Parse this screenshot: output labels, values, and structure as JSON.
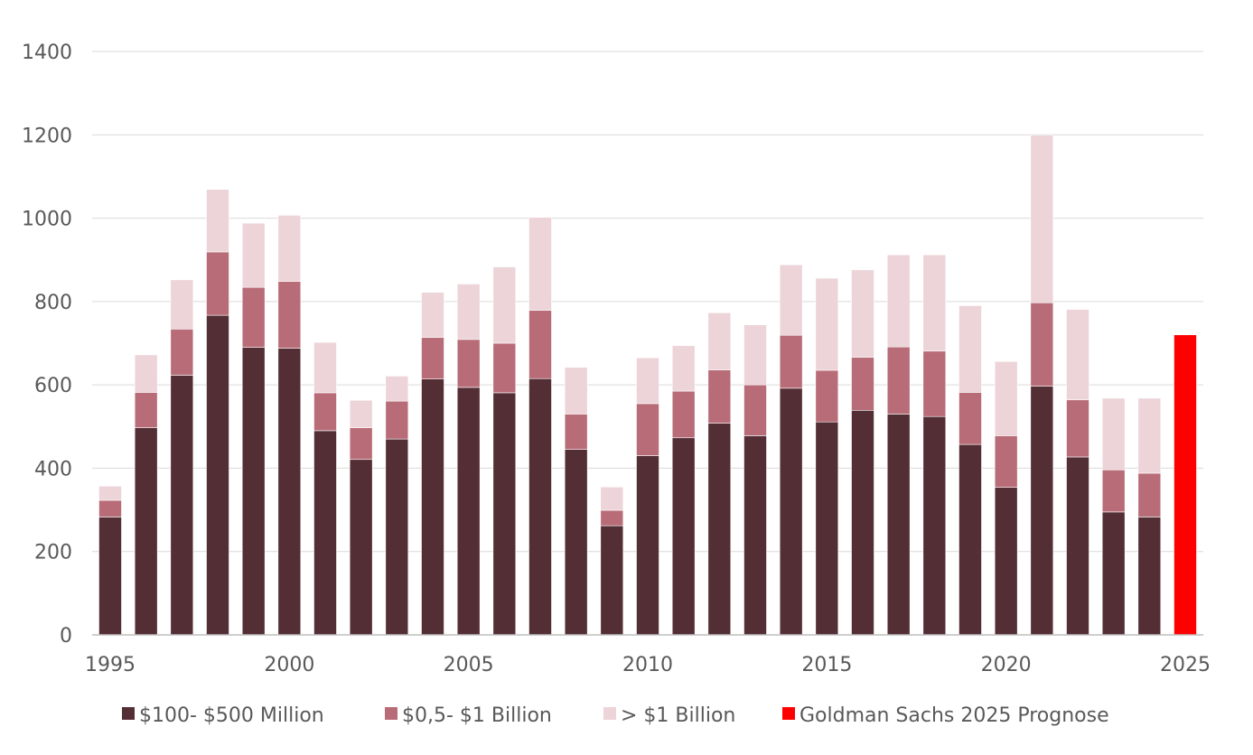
{
  "chart_data": {
    "type": "bar",
    "stacked": true,
    "title": "",
    "xlabel": "",
    "ylabel": "",
    "ylim": [
      0,
      1400
    ],
    "yticks": [
      0,
      200,
      400,
      600,
      800,
      1000,
      1200,
      1400
    ],
    "xtick_labels": [
      "1995",
      "2000",
      "2005",
      "2010",
      "2015",
      "2020",
      "2025"
    ],
    "grid": true,
    "legend_position": "bottom",
    "categories": [
      1995,
      1996,
      1997,
      1998,
      1999,
      2000,
      2001,
      2002,
      2003,
      2004,
      2005,
      2006,
      2007,
      2008,
      2009,
      2010,
      2011,
      2012,
      2013,
      2014,
      2015,
      2016,
      2017,
      2018,
      2019,
      2020,
      2021,
      2022,
      2023,
      2024,
      2025
    ],
    "series": [
      {
        "name": "$100- $500 Million",
        "color": "#542e35",
        "values": [
          283,
          497,
          623,
          767,
          690,
          688,
          490,
          421,
          470,
          614,
          594,
          581,
          615,
          445,
          262,
          430,
          473,
          508,
          478,
          592,
          511,
          539,
          530,
          524,
          457,
          354,
          597,
          427,
          295,
          283,
          0
        ]
      },
      {
        "name": "$0,5- $1 Billion",
        "color": "#b86c77",
        "values": [
          40,
          85,
          111,
          152,
          144,
          160,
          91,
          76,
          91,
          100,
          115,
          119,
          164,
          85,
          37,
          125,
          112,
          128,
          122,
          127,
          124,
          127,
          161,
          157,
          125,
          124,
          200,
          137,
          101,
          105,
          0
        ]
      },
      {
        "name": "> $1 Billion",
        "color": "#ecd4d8",
        "values": [
          34,
          90,
          118,
          150,
          154,
          159,
          121,
          66,
          60,
          108,
          133,
          183,
          223,
          112,
          56,
          110,
          109,
          137,
          144,
          169,
          221,
          210,
          221,
          231,
          208,
          178,
          402,
          217,
          172,
          180,
          0
        ]
      },
      {
        "name": "Goldman Sachs 2025 Prognose",
        "color": "#ff0000",
        "values": [
          0,
          0,
          0,
          0,
          0,
          0,
          0,
          0,
          0,
          0,
          0,
          0,
          0,
          0,
          0,
          0,
          0,
          0,
          0,
          0,
          0,
          0,
          0,
          0,
          0,
          0,
          0,
          0,
          0,
          0,
          720
        ]
      }
    ]
  }
}
